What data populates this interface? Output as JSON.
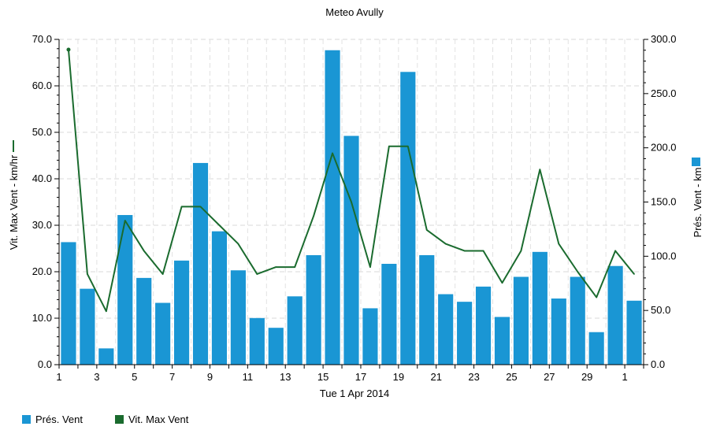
{
  "chart_data": {
    "type": "bar",
    "title": "Meteo  Avully",
    "xlabel": "Tue 1 Apr 2014",
    "ylabel_left": "Vit. Max Vent - km/hr",
    "ylabel_right": "Prés. Vent - km",
    "ylim_left": [
      0,
      70
    ],
    "ylim_right": [
      0,
      300
    ],
    "yticks_left": [
      "0.0",
      "10.0",
      "20.0",
      "30.0",
      "40.0",
      "50.0",
      "60.0",
      "70.0"
    ],
    "yticks_right": [
      "0.0",
      "50.0",
      "100.0",
      "150.0",
      "200.0",
      "250.0",
      "300.0"
    ],
    "xticks": [
      "1",
      "3",
      "5",
      "7",
      "9",
      "11",
      "13",
      "15",
      "17",
      "19",
      "21",
      "23",
      "25",
      "27",
      "29",
      "1"
    ],
    "grid": true,
    "legend_position": "bottom-left",
    "series": [
      {
        "name": "Prés. Vent",
        "type": "bar",
        "axis": "right",
        "color": "#1a96d4",
        "values": [
          113,
          70,
          15,
          138,
          80,
          57,
          96,
          186,
          123,
          87,
          43,
          34,
          63,
          101,
          290,
          211,
          52,
          93,
          270,
          101,
          65,
          58,
          72,
          44,
          81,
          104,
          61,
          81,
          30,
          91,
          59
        ]
      },
      {
        "name": "Vit. Max Vent",
        "type": "line",
        "axis": "left",
        "color": "#1a6b2e",
        "values": [
          67.8,
          19.5,
          11.5,
          31,
          24.5,
          19.5,
          34,
          34,
          30,
          26,
          19.5,
          21,
          21,
          32,
          45.5,
          35,
          21,
          47,
          47,
          29,
          26,
          24.5,
          24.5,
          17.6,
          24.5,
          42,
          26,
          20,
          14.5,
          24.5,
          19.5
        ]
      }
    ]
  }
}
